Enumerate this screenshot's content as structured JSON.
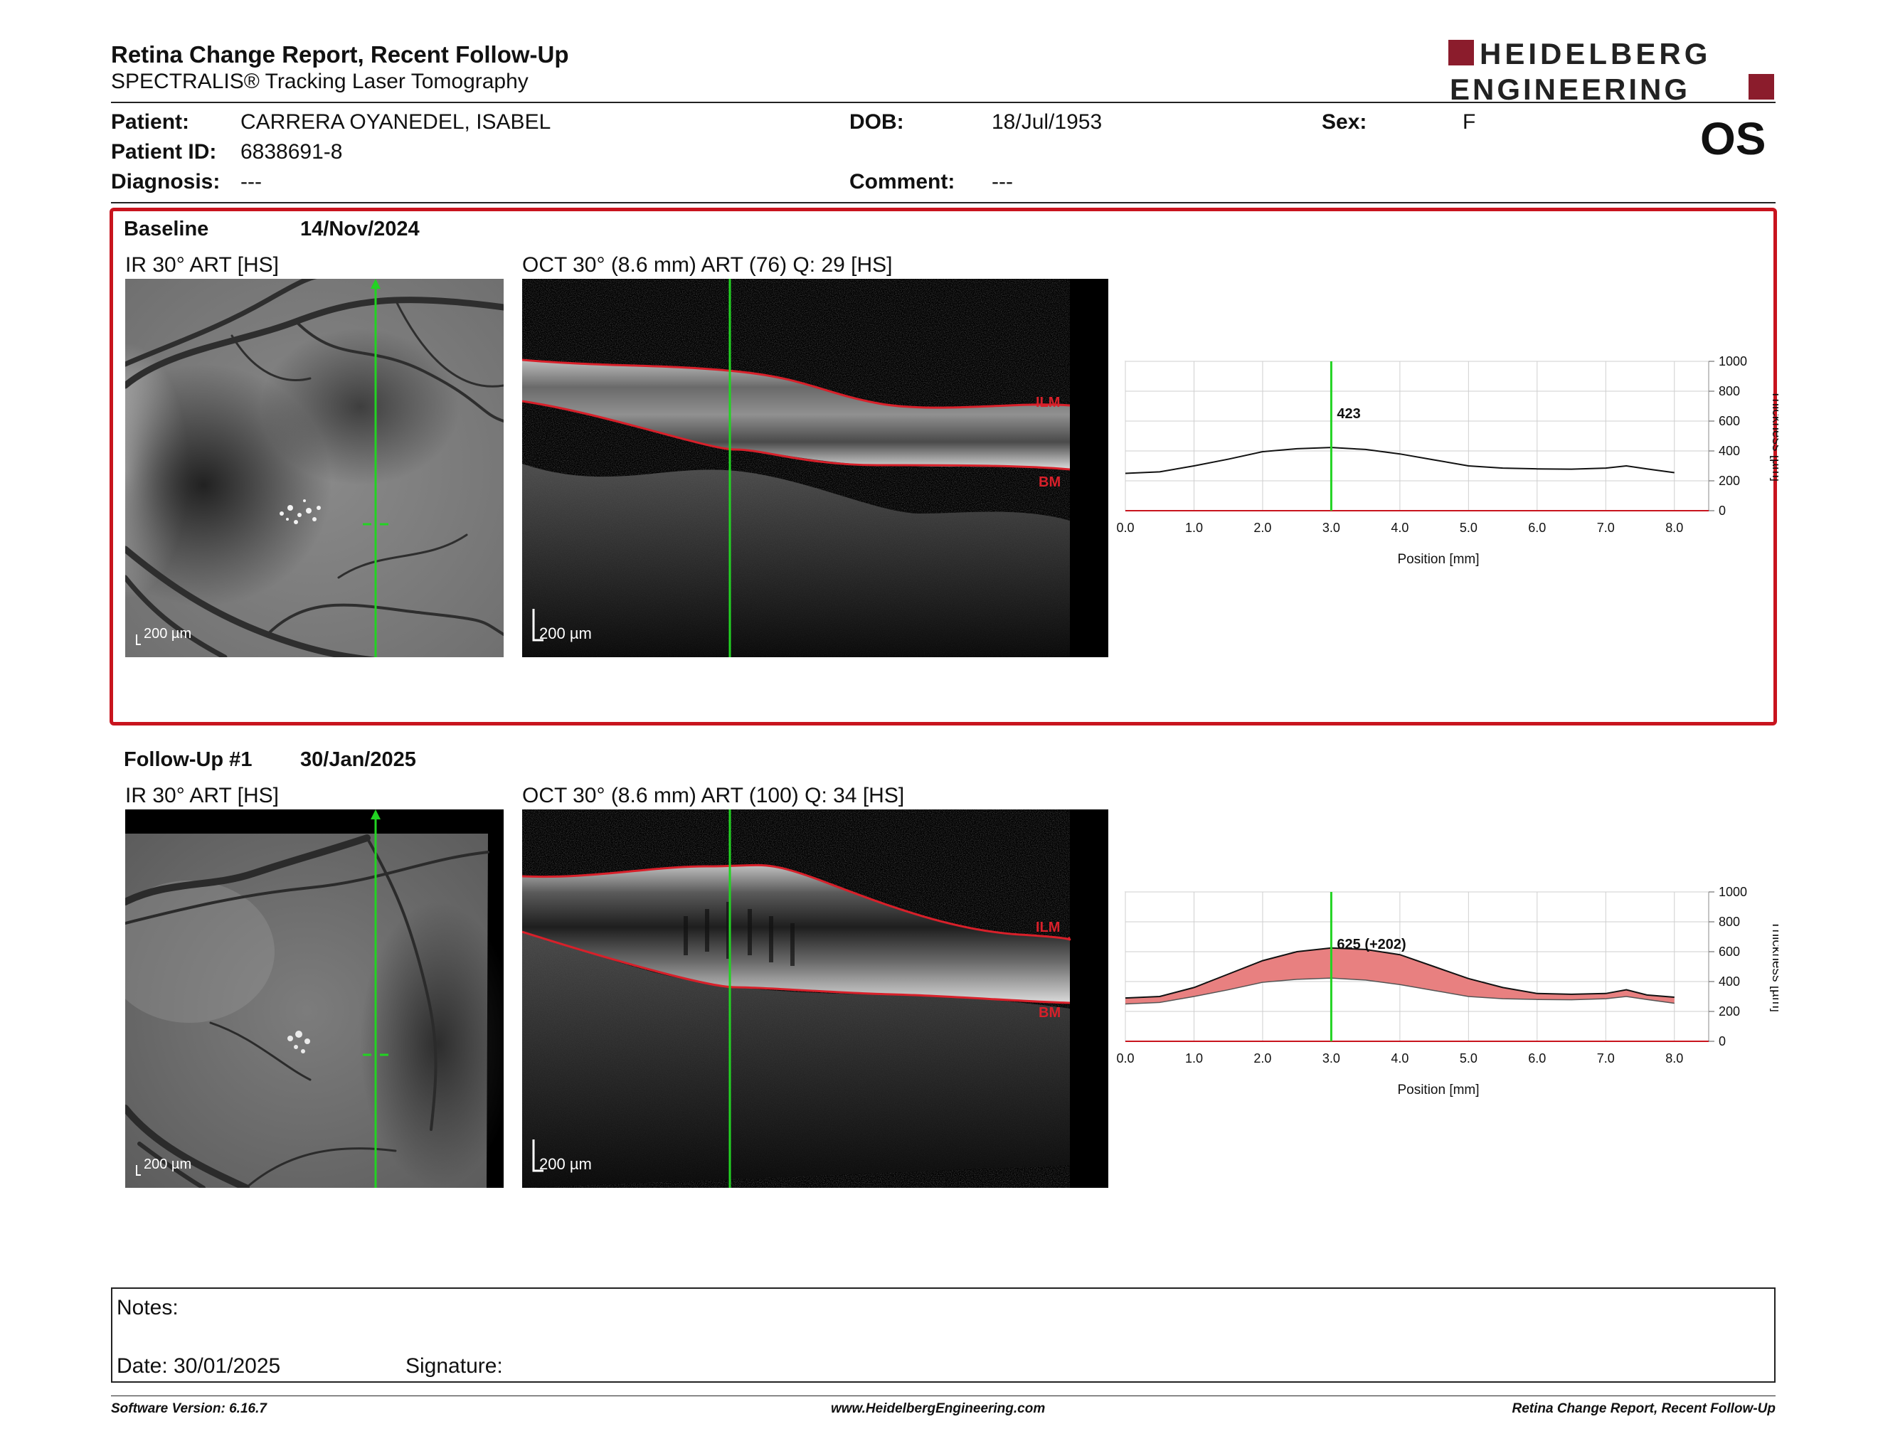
{
  "header": {
    "title": "Retina Change Report, Recent Follow-Up",
    "subtitle": "SPECTRALIS® Tracking Laser Tomography",
    "logo_line1": "HEIDELBERG",
    "logo_line2": "ENGINEERING",
    "eye": "OS"
  },
  "patient": {
    "patient_label": "Patient:",
    "patient_value": "CARRERA OYANEDEL, ISABEL",
    "id_label": "Patient ID:",
    "id_value": "6838691-8",
    "diagnosis_label": "Diagnosis:",
    "diagnosis_value": "---",
    "dob_label": "DOB:",
    "dob_value": "18/Jul/1953",
    "comment_label": "Comment:",
    "comment_value": "---",
    "sex_label": "Sex:",
    "sex_value": "F"
  },
  "baseline": {
    "label": "Baseline",
    "date": "14/Nov/2024",
    "ir_caption": "IR 30° ART [HS]",
    "oct_caption": "OCT 30° (8.6 mm) ART (76) Q: 29 [HS]",
    "scale_ir": "200 µm",
    "scale_oct": "200 µm",
    "ilm": "ILM",
    "bm": "BM"
  },
  "followup": {
    "label": "Follow-Up #1",
    "date": "30/Jan/2025",
    "ir_caption": "IR 30° ART [HS]",
    "oct_caption": "OCT 30° (8.6 mm) ART (100) Q: 34 [HS]",
    "scale_ir": "200 µm",
    "scale_oct": "200 µm",
    "ilm": "ILM",
    "bm": "BM"
  },
  "chart_data": [
    {
      "type": "line",
      "xlabel": "Position [mm]",
      "ylabel": "Thickness [µm]",
      "xlim": [
        0,
        8.5
      ],
      "ylim": [
        0,
        1000
      ],
      "x_ticks": [
        "0.0",
        "1.0",
        "2.0",
        "3.0",
        "4.0",
        "5.0",
        "6.0",
        "7.0",
        "8.0"
      ],
      "y_ticks": [
        "0",
        "200",
        "400",
        "600",
        "800",
        "1000"
      ],
      "grid": true,
      "marker_x": 3.0,
      "annotation": "423",
      "series": [
        {
          "x": [
            0,
            0.5,
            1,
            1.5,
            2,
            2.5,
            3,
            3.5,
            4,
            4.5,
            5,
            5.5,
            6,
            6.5,
            7,
            7.3,
            7.6,
            8
          ],
          "values": [
            250,
            260,
            300,
            345,
            395,
            415,
            423,
            410,
            380,
            340,
            300,
            285,
            280,
            278,
            285,
            300,
            280,
            255
          ]
        }
      ]
    },
    {
      "type": "area",
      "xlabel": "Position [mm]",
      "ylabel": "Thickness [µm]",
      "xlim": [
        0,
        8.5
      ],
      "ylim": [
        0,
        1000
      ],
      "x_ticks": [
        "0.0",
        "1.0",
        "2.0",
        "3.0",
        "4.0",
        "5.0",
        "6.0",
        "7.0",
        "8.0"
      ],
      "y_ticks": [
        "0",
        "200",
        "400",
        "600",
        "800",
        "1000"
      ],
      "grid": true,
      "marker_x": 3.0,
      "annotation": "625 (+202)",
      "series": [
        {
          "x": [
            0,
            0.5,
            1,
            1.5,
            2,
            2.5,
            3,
            3.5,
            4,
            4.5,
            5,
            5.5,
            6,
            6.5,
            7,
            7.3,
            7.6,
            8
          ],
          "values": [
            290,
            300,
            360,
            450,
            540,
            600,
            625,
            615,
            580,
            500,
            420,
            360,
            320,
            315,
            320,
            345,
            310,
            295
          ]
        },
        {
          "x": [
            0,
            0.5,
            1,
            1.5,
            2,
            2.5,
            3,
            3.5,
            4,
            4.5,
            5,
            5.5,
            6,
            6.5,
            7,
            7.3,
            7.6,
            8
          ],
          "values": [
            250,
            260,
            300,
            345,
            395,
            415,
            423,
            410,
            380,
            340,
            300,
            285,
            280,
            278,
            285,
            300,
            280,
            255
          ]
        }
      ]
    }
  ],
  "notes": {
    "notes_label": "Notes:",
    "date_label": "Date: 30/01/2025",
    "signature_label": "Signature:"
  },
  "footer": {
    "software": "Software Version: 6.16.7",
    "website": "www.HeidelbergEngineering.com",
    "report": "Retina Change Report, Recent Follow-Up"
  }
}
